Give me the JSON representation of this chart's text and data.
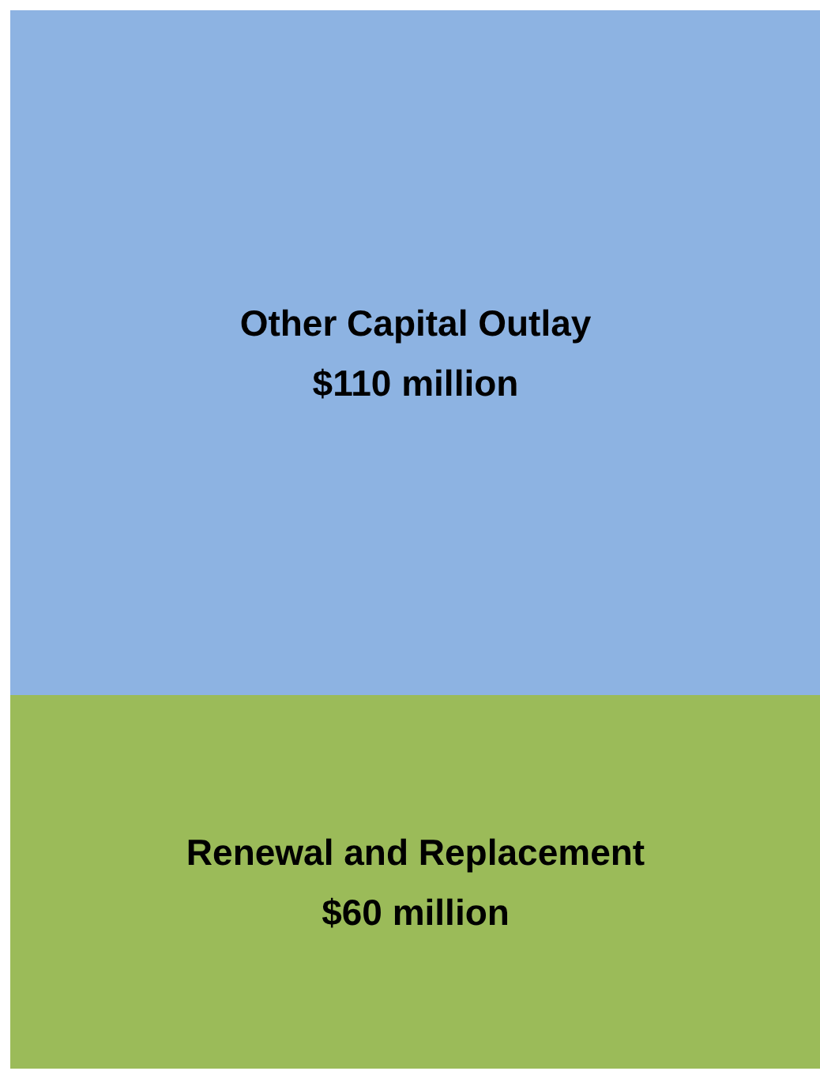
{
  "chart_data": {
    "type": "bar",
    "stacked": true,
    "categories": [
      null
    ],
    "series": [
      {
        "name": "Renewal and Replacement",
        "color": "#9bbb59",
        "values": [
          60
        ],
        "value_labels": [
          "$60 million"
        ]
      },
      {
        "name": "Other Capital Outlay",
        "color": "#8db3e2",
        "values": [
          110
        ],
        "value_labels": [
          "$110 million"
        ]
      }
    ]
  }
}
